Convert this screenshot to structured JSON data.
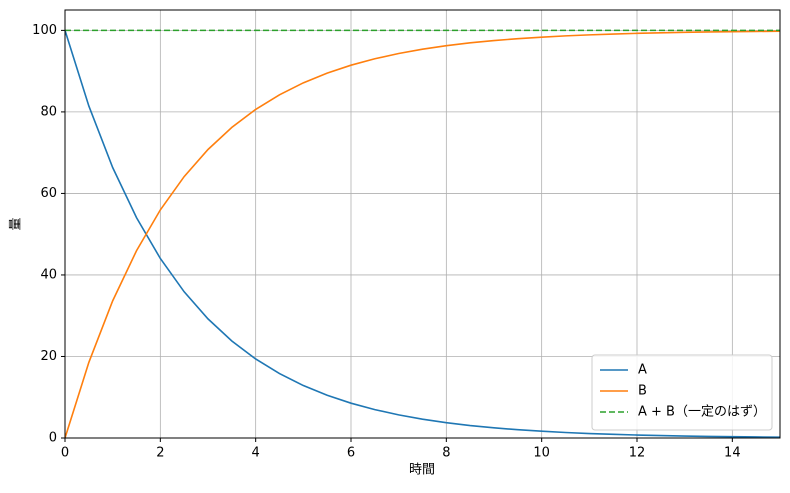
{
  "chart_data": {
    "type": "line",
    "xlabel": "時間",
    "ylabel": "量",
    "x": [
      0,
      0.5,
      1,
      1.5,
      2,
      2.5,
      3,
      3.5,
      4,
      4.5,
      5,
      5.5,
      6,
      6.5,
      7,
      7.5,
      8,
      8.5,
      9,
      9.5,
      10,
      10.5,
      11,
      11.5,
      12,
      12.5,
      13,
      13.5,
      14,
      14.5,
      15
    ],
    "series": [
      {
        "name": "A",
        "color": "#1f77b4",
        "dashed": false,
        "values": [
          100,
          81.46,
          66.36,
          54.06,
          44.04,
          35.87,
          29.22,
          23.8,
          19.39,
          15.8,
          12.87,
          10.48,
          8.54,
          6.96,
          5.67,
          4.62,
          3.76,
          3.06,
          2.5,
          2.03,
          1.66,
          1.35,
          1.1,
          0.9,
          0.73,
          0.59,
          0.48,
          0.39,
          0.32,
          0.26,
          0.21
        ]
      },
      {
        "name": "B",
        "color": "#ff7f0e",
        "dashed": false,
        "values": [
          0,
          18.54,
          33.64,
          45.94,
          55.96,
          64.13,
          70.78,
          76.2,
          80.61,
          84.2,
          87.13,
          89.52,
          91.46,
          93.04,
          94.33,
          95.38,
          96.24,
          96.94,
          97.5,
          97.97,
          98.34,
          98.65,
          98.9,
          99.1,
          99.27,
          99.41,
          99.52,
          99.61,
          99.68,
          99.74,
          99.79
        ]
      },
      {
        "name": "A + B（一定のはず）",
        "color": "#2ca02c",
        "dashed": true,
        "values": [
          100,
          100,
          100,
          100,
          100,
          100,
          100,
          100,
          100,
          100,
          100,
          100,
          100,
          100,
          100,
          100,
          100,
          100,
          100,
          100,
          100,
          100,
          100,
          100,
          100,
          100,
          100,
          100,
          100,
          100,
          100
        ]
      }
    ],
    "xlim": [
      0,
      15
    ],
    "ylim": [
      0,
      105
    ],
    "xticks": [
      0,
      2,
      4,
      6,
      8,
      10,
      12,
      14
    ],
    "yticks": [
      0,
      20,
      40,
      60,
      80,
      100
    ],
    "grid": true,
    "legend": "lower right"
  }
}
